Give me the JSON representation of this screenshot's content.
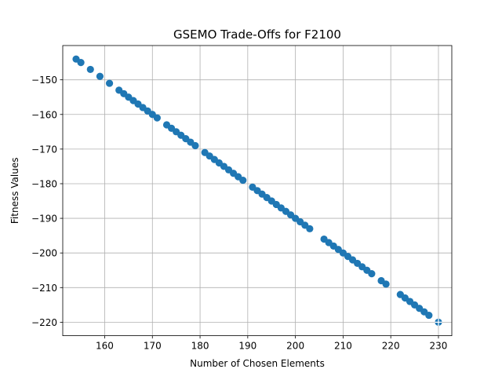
{
  "chart_data": {
    "type": "scatter",
    "title": "GSEMO Trade-Offs for F2100",
    "xlabel": "Number of Chosen Elements",
    "ylabel": "Fitness Values",
    "xlim": [
      151.2,
      232.8
    ],
    "ylim": [
      -223.9,
      -140.1
    ],
    "xticks": [
      160,
      170,
      180,
      190,
      200,
      210,
      220,
      230
    ],
    "yticks": [
      -150,
      -160,
      -170,
      -180,
      -190,
      -200,
      -210,
      -220
    ],
    "xtick_labels": [
      "160",
      "170",
      "180",
      "190",
      "200",
      "210",
      "220",
      "230"
    ],
    "ytick_labels": [
      "−150",
      "−160",
      "−170",
      "−180",
      "−190",
      "−200",
      "−210",
      "−220"
    ],
    "grid": true,
    "legend": "none",
    "point_color": "#1f77b4",
    "highlight": {
      "x": 230,
      "y": -220,
      "marker": "plus",
      "color": "#1f77b4"
    },
    "series": [
      {
        "x": [
          154,
          155,
          157,
          159,
          161,
          163,
          164,
          165,
          166,
          167,
          168,
          169,
          170,
          171,
          173,
          174,
          175,
          176,
          177,
          178,
          179,
          181,
          182,
          183,
          184,
          185,
          186,
          187,
          188,
          189,
          191,
          192,
          193,
          194,
          195,
          196,
          197,
          198,
          199,
          200,
          201,
          202,
          203,
          206,
          207,
          208,
          209,
          210,
          211,
          212,
          213,
          214,
          215,
          216,
          218,
          219,
          222,
          223,
          224,
          225,
          226,
          227,
          228,
          230
        ],
        "y": [
          -144,
          -145,
          -147,
          -149,
          -151,
          -153,
          -154,
          -155,
          -156,
          -157,
          -158,
          -159,
          -160,
          -161,
          -163,
          -164,
          -165,
          -166,
          -167,
          -168,
          -169,
          -171,
          -172,
          -173,
          -174,
          -175,
          -176,
          -177,
          -178,
          -179,
          -181,
          -182,
          -183,
          -184,
          -185,
          -186,
          -187,
          -188,
          -189,
          -190,
          -191,
          -192,
          -193,
          -196,
          -197,
          -198,
          -199,
          -200,
          -201,
          -202,
          -203,
          -204,
          -205,
          -206,
          -208,
          -209,
          -212,
          -213,
          -214,
          -215,
          -216,
          -217,
          -218,
          -220
        ]
      }
    ]
  }
}
